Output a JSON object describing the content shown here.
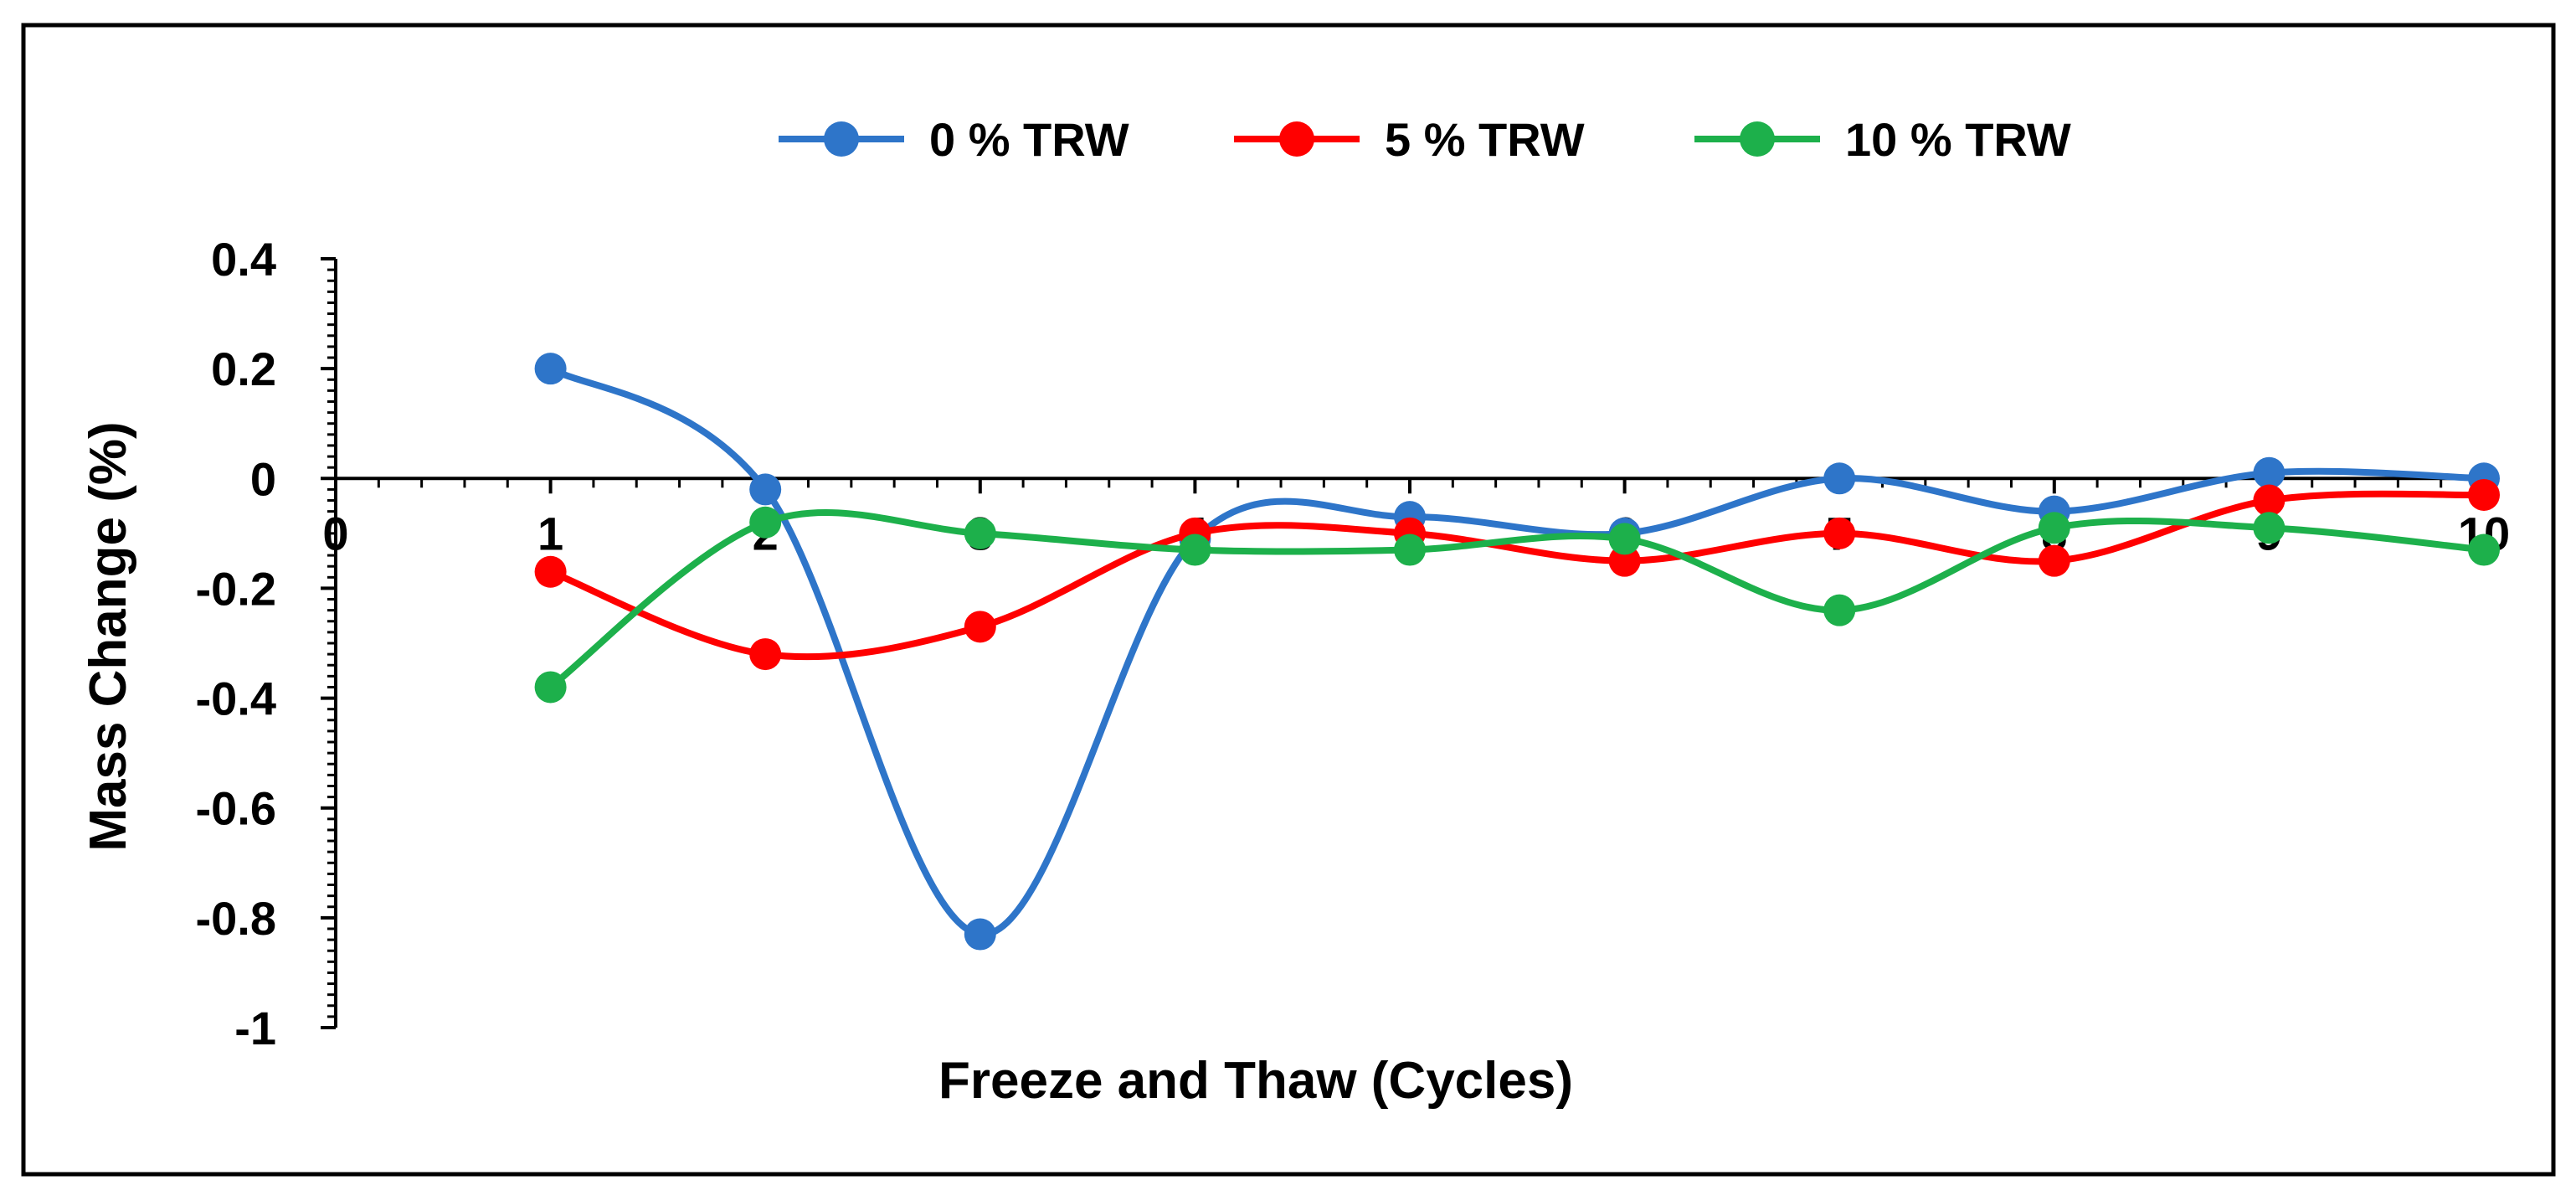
{
  "chart_data": {
    "type": "line",
    "title": "",
    "xlabel": "Freeze and Thaw (Cycles)",
    "ylabel": "Mass Change (%)",
    "x": [
      1,
      2,
      3,
      4,
      5,
      6,
      7,
      8,
      9,
      10
    ],
    "xlim": [
      0,
      10
    ],
    "ylim": [
      -1,
      0.4
    ],
    "x_ticks": [
      "0",
      "1",
      "2",
      "3",
      "4",
      "5",
      "6",
      "7",
      "8",
      "9",
      "10"
    ],
    "y_ticks": [
      "0.4",
      "0.2",
      "0",
      "-0.2",
      "-0.4",
      "-0.6",
      "-0.8",
      "-1"
    ],
    "y_tick_values": [
      0.4,
      0.2,
      0,
      -0.2,
      -0.4,
      -0.6,
      -0.8,
      -1
    ],
    "grid": false,
    "smooth": true,
    "legend_position": "top-center",
    "series": [
      {
        "name": "0 % TRW",
        "color": "#2E75C9",
        "values": [
          0.2,
          -0.02,
          -0.83,
          -0.11,
          -0.07,
          -0.1,
          0.0,
          -0.06,
          0.01,
          0.0
        ]
      },
      {
        "name": "5 % TRW",
        "color": "#FF0000",
        "values": [
          -0.17,
          -0.32,
          -0.27,
          -0.1,
          -0.1,
          -0.15,
          -0.1,
          -0.15,
          -0.04,
          -0.03
        ]
      },
      {
        "name": "10 % TRW",
        "color": "#1DB04B",
        "values": [
          -0.38,
          -0.08,
          -0.1,
          -0.13,
          -0.13,
          -0.11,
          -0.24,
          -0.09,
          -0.09,
          -0.13
        ]
      }
    ]
  }
}
